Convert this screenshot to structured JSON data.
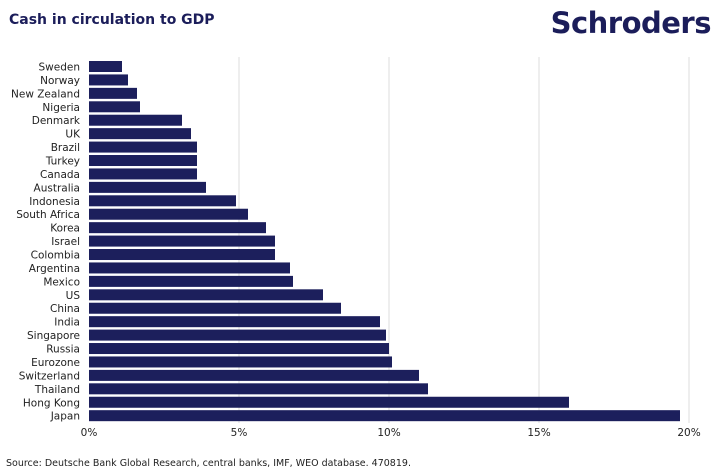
{
  "header": {
    "title": "Cash in circulation to GDP",
    "logo": "Schroders"
  },
  "colors": {
    "bar": "#1c1f5c",
    "text": "#1b1d5a",
    "grid": "#dddddd"
  },
  "chart_data": {
    "type": "bar",
    "orientation": "horizontal",
    "title": "Cash in circulation to GDP",
    "xlabel": "",
    "ylabel": "",
    "unit": "%",
    "xlim": [
      0,
      20
    ],
    "xticks": [
      0,
      5,
      10,
      15,
      20
    ],
    "xtick_labels": [
      "0%",
      "5%",
      "10%",
      "15%",
      "20%"
    ],
    "grid": true,
    "categories": [
      "Sweden",
      "Norway",
      "New Zealand",
      "Nigeria",
      "Denmark",
      "UK",
      "Brazil",
      "Turkey",
      "Canada",
      "Australia",
      "Indonesia",
      "South Africa",
      "Korea",
      "Israel",
      "Colombia",
      "Argentina",
      "Mexico",
      "US",
      "China",
      "India",
      "Singapore",
      "Russia",
      "Eurozone",
      "Switzerland",
      "Thailand",
      "Hong Kong",
      "Japan"
    ],
    "values": [
      1.1,
      1.3,
      1.6,
      1.7,
      3.1,
      3.4,
      3.6,
      3.6,
      3.6,
      3.9,
      4.9,
      5.3,
      5.9,
      6.2,
      6.2,
      6.7,
      6.8,
      7.8,
      8.4,
      9.7,
      9.9,
      10.0,
      10.1,
      11.0,
      11.3,
      16.0,
      19.7
    ]
  },
  "footer": {
    "source": "Source: Deutsche Bank Global Research, central banks, IMF, WEO database. 470819."
  }
}
